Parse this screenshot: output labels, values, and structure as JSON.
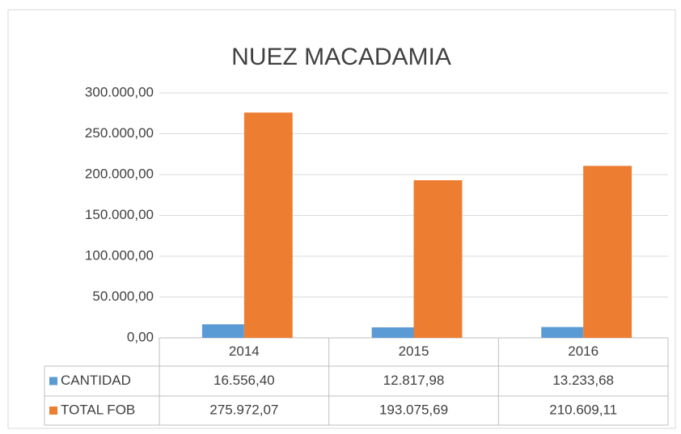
{
  "chart_data": {
    "type": "bar",
    "title": "NUEZ MACADAMIA",
    "categories": [
      "2014",
      "2015",
      "2016"
    ],
    "series": [
      {
        "name": "CANTIDAD",
        "color": "#5b9bd5",
        "values": [
          16556.4,
          12817.98,
          13233.68
        ],
        "value_labels": [
          "16.556,40",
          "12.817,98",
          "13.233,68"
        ]
      },
      {
        "name": "TOTAL FOB",
        "color": "#ed7d31",
        "values": [
          275972.07,
          193075.69,
          210609.11
        ],
        "value_labels": [
          "275.972,07",
          "193.075,69",
          "210.609,11"
        ]
      }
    ],
    "ylim": [
      0,
      300000
    ],
    "yticks": [
      {
        "value": 0,
        "label": "0,00"
      },
      {
        "value": 50000,
        "label": "50.000,00"
      },
      {
        "value": 100000,
        "label": "100.000,00"
      },
      {
        "value": 150000,
        "label": "150.000,00"
      },
      {
        "value": 200000,
        "label": "200.000,00"
      },
      {
        "value": 250000,
        "label": "250.000,00"
      },
      {
        "value": 300000,
        "label": "300.000,00"
      }
    ],
    "grid": true
  }
}
